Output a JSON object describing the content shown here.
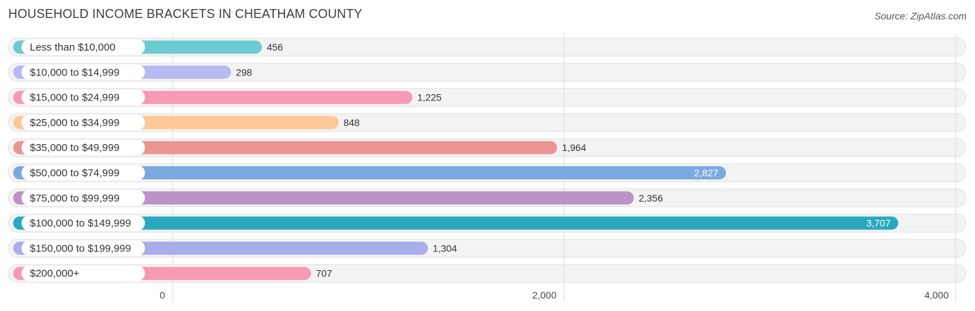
{
  "title": "HOUSEHOLD INCOME BRACKETS IN CHEATHAM COUNTY",
  "source": "Source: ZipAtlas.com",
  "chart_data": {
    "type": "bar",
    "orientation": "horizontal",
    "title": "HOUSEHOLD INCOME BRACKETS IN CHEATHAM COUNTY",
    "categories": [
      "Less than $10,000",
      "$10,000 to $14,999",
      "$15,000 to $24,999",
      "$25,000 to $34,999",
      "$35,000 to $49,999",
      "$50,000 to $74,999",
      "$75,000 to $99,999",
      "$100,000 to $149,999",
      "$150,000 to $199,999",
      "$200,000+"
    ],
    "values": [
      456,
      298,
      1225,
      848,
      1964,
      2827,
      2356,
      3707,
      1304,
      707
    ],
    "value_labels": [
      "456",
      "298",
      "1,225",
      "848",
      "1,964",
      "2,827",
      "2,356",
      "3,707",
      "1,304",
      "707"
    ],
    "colors": [
      "#6ccbd0",
      "#b6baf0",
      "#f59ab6",
      "#fcc896",
      "#ea9594",
      "#7aa9e0",
      "#bb93c7",
      "#2aa8bd",
      "#a9aeea",
      "#f59ab6"
    ],
    "xlim": [
      0,
      4000
    ],
    "ticks": [
      0,
      2000,
      4000
    ],
    "tick_labels": [
      "0",
      "2,000",
      "4,000"
    ],
    "grid": true,
    "xlabel": "",
    "ylabel": ""
  }
}
